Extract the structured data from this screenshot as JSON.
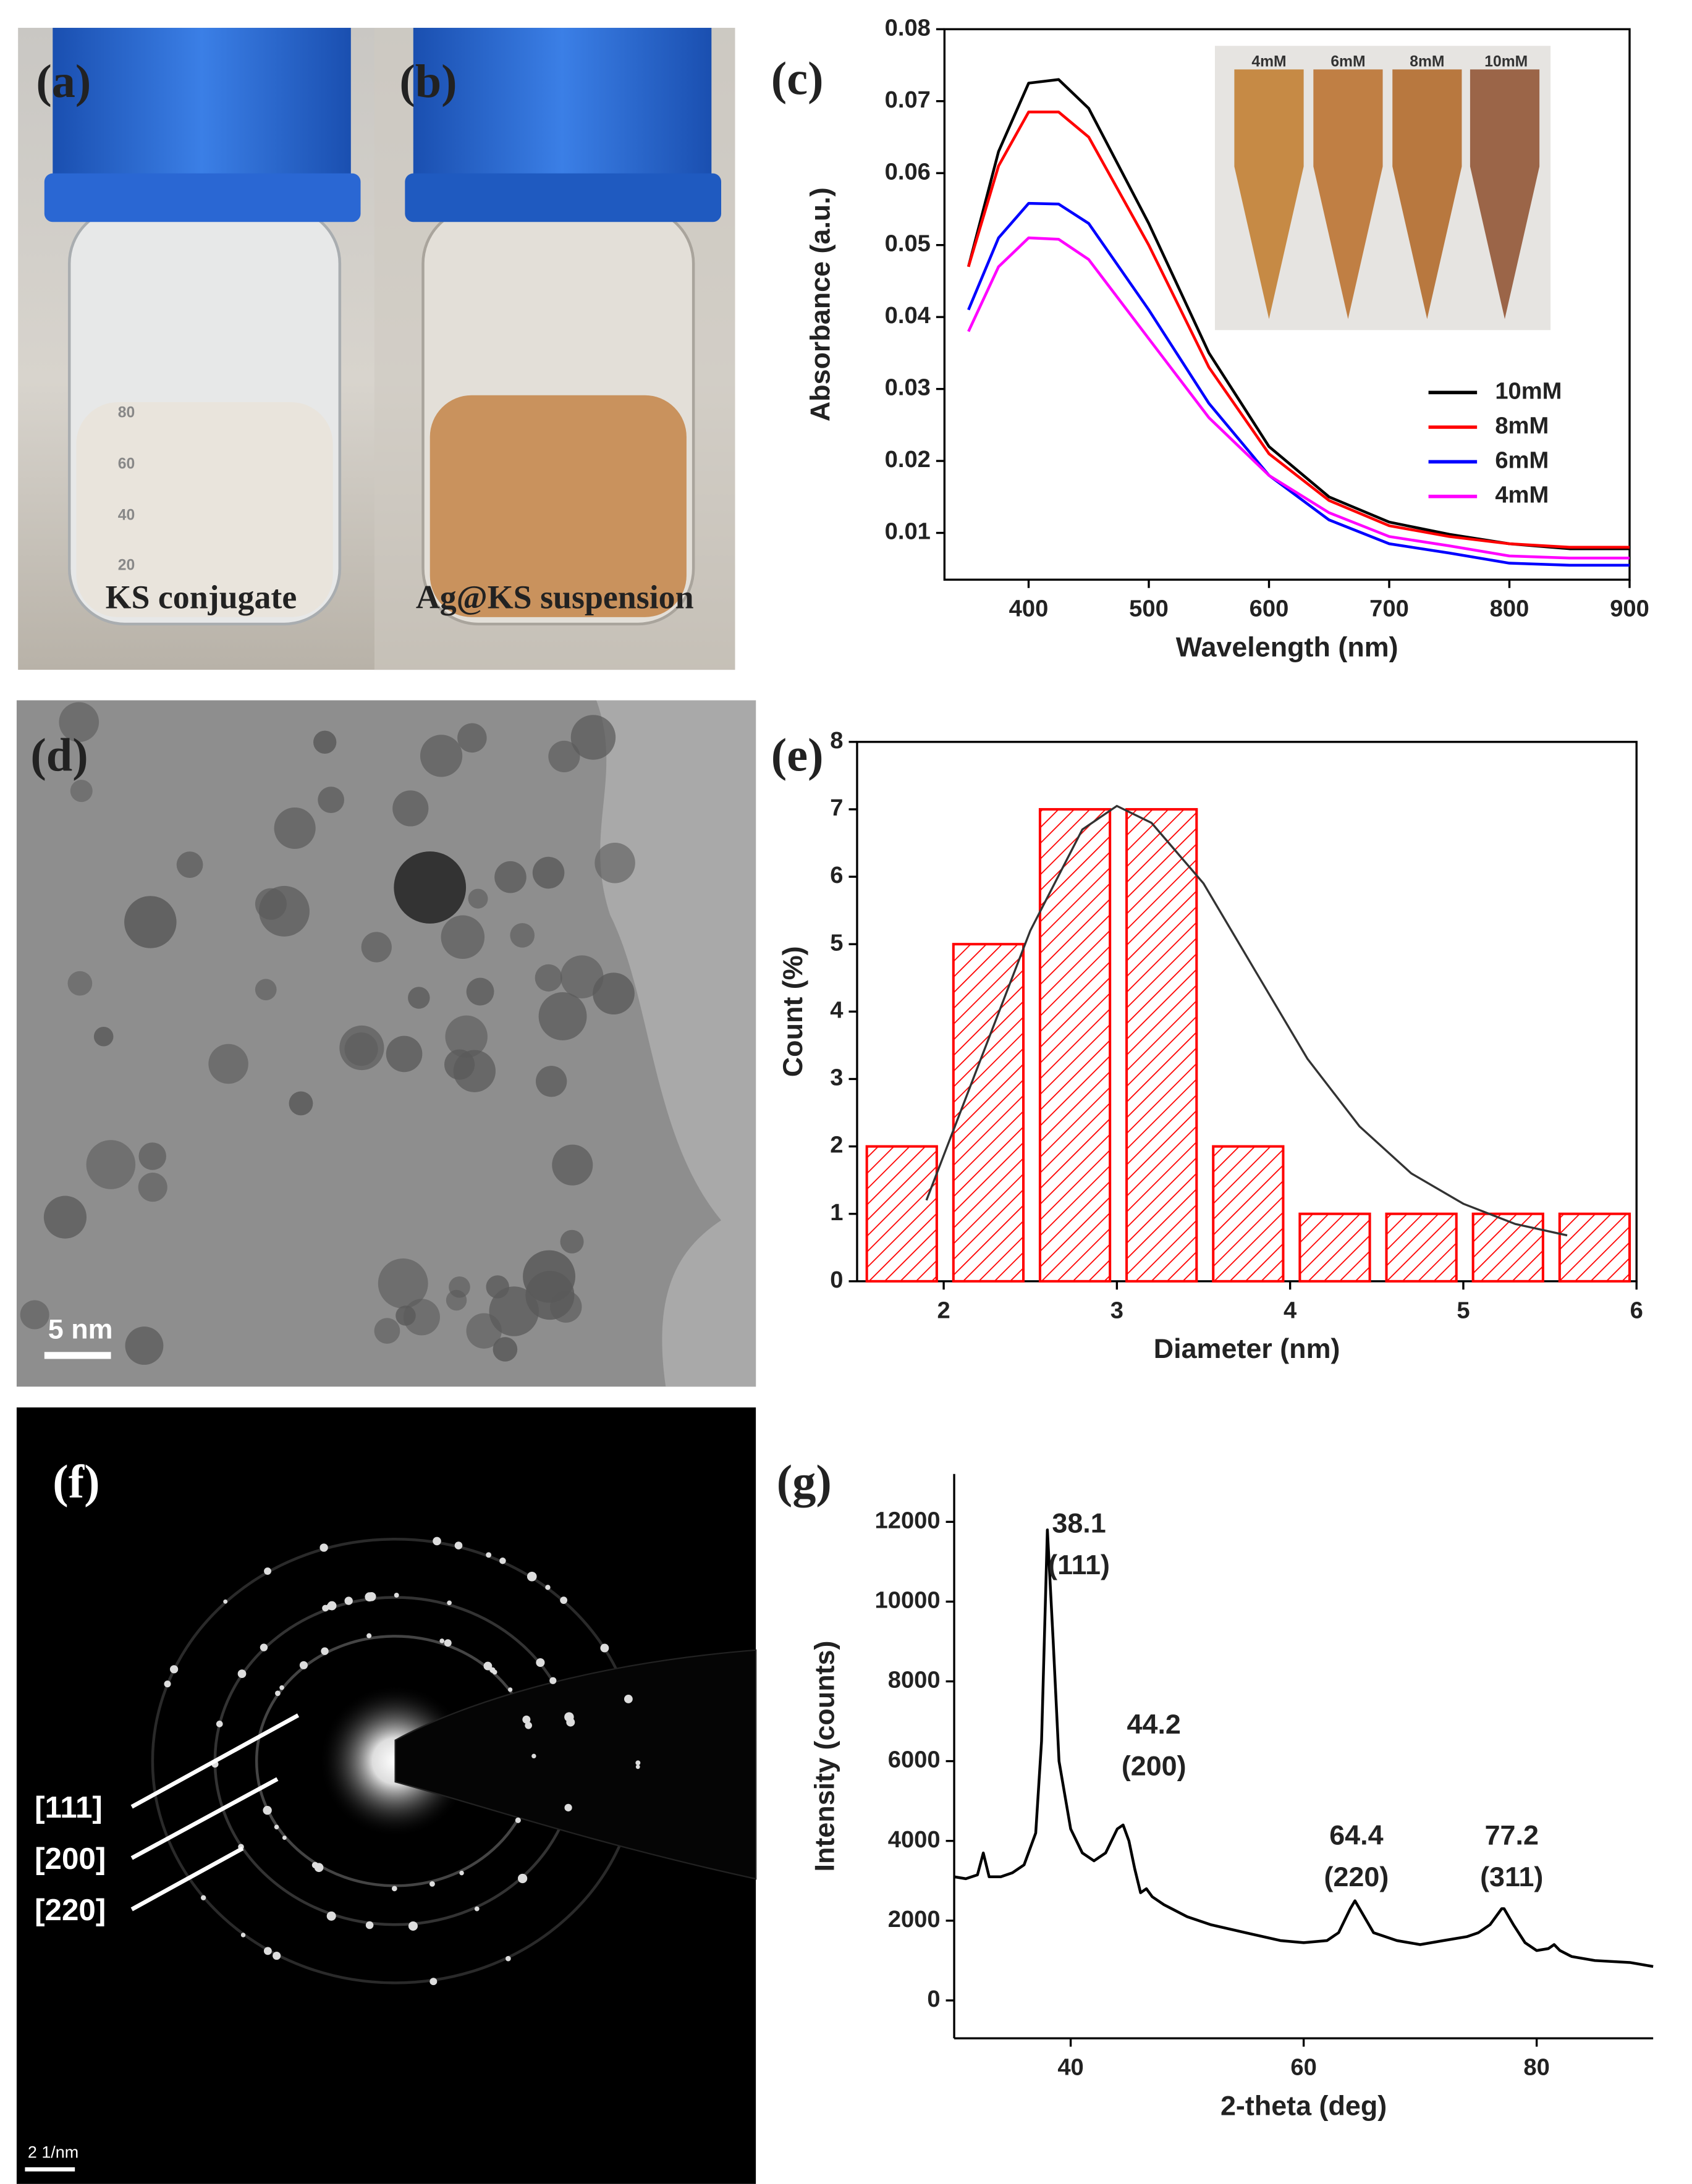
{
  "photos": {
    "a": {
      "label": "(a)",
      "caption": "KS conjugate",
      "graduations": [
        "80",
        "60",
        "40",
        "20"
      ]
    },
    "b": {
      "label": "(b)",
      "caption": "Ag@KS suspension"
    },
    "d": {
      "label": "(d)",
      "scale_bar": "5 nm"
    },
    "f": {
      "label": "(f)",
      "scale_bar": "2 1/nm",
      "rings": [
        "[111]",
        "[200]",
        "[220]"
      ]
    }
  },
  "chart_data": [
    {
      "type": "line",
      "panel_label": "(c)",
      "xlabel": "Wavelength (nm)",
      "ylabel": "Absorbance (a.u.)",
      "x": [
        350,
        375,
        400,
        425,
        450,
        500,
        550,
        600,
        650,
        700,
        750,
        800,
        850,
        900
      ],
      "series": [
        {
          "name": "10mM",
          "color": "#000000",
          "values": [
            0.047,
            0.063,
            0.0725,
            0.073,
            0.069,
            0.053,
            0.035,
            0.022,
            0.015,
            0.0115,
            0.0098,
            0.0085,
            0.0078,
            0.0078
          ]
        },
        {
          "name": "8mM",
          "color": "#ff0000",
          "values": [
            0.047,
            0.061,
            0.0685,
            0.0685,
            0.065,
            0.05,
            0.033,
            0.021,
            0.0145,
            0.011,
            0.0095,
            0.0085,
            0.008,
            0.008
          ]
        },
        {
          "name": "6mM",
          "color": "#0000ff",
          "values": [
            0.041,
            0.051,
            0.0558,
            0.0557,
            0.053,
            0.041,
            0.028,
            0.018,
            0.0118,
            0.0085,
            0.0072,
            0.0058,
            0.0055,
            0.0055
          ]
        },
        {
          "name": "4mM",
          "color": "#ff00ff",
          "values": [
            0.038,
            0.047,
            0.051,
            0.0508,
            0.048,
            0.037,
            0.026,
            0.018,
            0.0128,
            0.0095,
            0.0082,
            0.0068,
            0.0065,
            0.0065
          ]
        }
      ],
      "xlim": [
        330,
        900
      ],
      "ylim": [
        0.0035,
        0.08
      ],
      "xticks": [
        400,
        500,
        600,
        700,
        800,
        900
      ],
      "yticks": [
        0.01,
        0.02,
        0.03,
        0.04,
        0.05,
        0.06,
        0.07,
        0.08
      ],
      "legend": "lower right",
      "inset_labels": [
        "4mM",
        "6mM",
        "8mM",
        "10mM"
      ]
    },
    {
      "type": "histogram",
      "panel_label": "(e)",
      "xlabel": "Diameter (nm)",
      "ylabel": "Count (%)",
      "bins": [
        1.5,
        2,
        2.5,
        3,
        3.5,
        4,
        4.5,
        5,
        5.5,
        6
      ],
      "values": [
        2,
        5,
        7,
        7,
        2,
        1,
        1,
        1,
        1
      ],
      "color": "#ff0000",
      "fit": {
        "color": "#333333",
        "x": [
          1.9,
          2.2,
          2.5,
          2.8,
          3.0,
          3.2,
          3.5,
          3.8,
          4.1,
          4.4,
          4.7,
          5.0,
          5.3,
          5.6
        ],
        "values": [
          1.2,
          3.2,
          5.2,
          6.7,
          7.05,
          6.8,
          5.9,
          4.6,
          3.3,
          2.3,
          1.6,
          1.15,
          0.85,
          0.68
        ]
      },
      "xlim": [
        1.5,
        6
      ],
      "ylim": [
        0,
        8
      ],
      "xticks": [
        2,
        3,
        4,
        5,
        6
      ],
      "yticks": [
        0,
        1,
        2,
        3,
        4,
        5,
        6,
        7,
        8
      ]
    },
    {
      "type": "line",
      "panel_label": "(g)",
      "xlabel": "2-theta (deg)",
      "ylabel": "Intensity (counts)",
      "x": [
        30,
        31,
        32,
        32.5,
        33,
        34,
        35,
        36,
        37,
        37.5,
        38,
        38.5,
        39,
        40,
        41,
        42,
        43,
        44,
        44.5,
        45,
        45.5,
        46,
        46.5,
        47,
        48,
        50,
        52,
        55,
        58,
        60,
        62,
        63,
        64,
        64.4,
        65,
        66,
        68,
        70,
        72,
        74,
        75,
        76,
        77,
        77.2,
        78,
        79,
        80,
        81,
        81.5,
        82,
        83,
        85,
        88,
        90
      ],
      "series": [
        {
          "color": "#000000",
          "values": [
            3100,
            3050,
            3150,
            3700,
            3100,
            3100,
            3200,
            3400,
            4200,
            6500,
            11800,
            9000,
            6000,
            4300,
            3700,
            3500,
            3700,
            4300,
            4400,
            4000,
            3300,
            2700,
            2800,
            2600,
            2400,
            2100,
            1900,
            1700,
            1500,
            1450,
            1500,
            1700,
            2300,
            2500,
            2200,
            1700,
            1500,
            1400,
            1500,
            1600,
            1700,
            1900,
            2300,
            2300,
            1900,
            1450,
            1250,
            1300,
            1400,
            1250,
            1100,
            1000,
            950,
            850
          ]
        }
      ],
      "xlim": [
        30,
        90
      ],
      "ylim": [
        -950,
        13200
      ],
      "xticks": [
        40,
        60,
        80
      ],
      "yticks": [
        0,
        2000,
        4000,
        6000,
        8000,
        10000,
        12000
      ],
      "annotations": [
        {
          "peak": "38.1",
          "plane": "(111)"
        },
        {
          "peak": "44.2",
          "plane": "(200)"
        },
        {
          "peak": "64.4",
          "plane": "(220)"
        },
        {
          "peak": "77.2",
          "plane": "(311)"
        }
      ]
    }
  ]
}
